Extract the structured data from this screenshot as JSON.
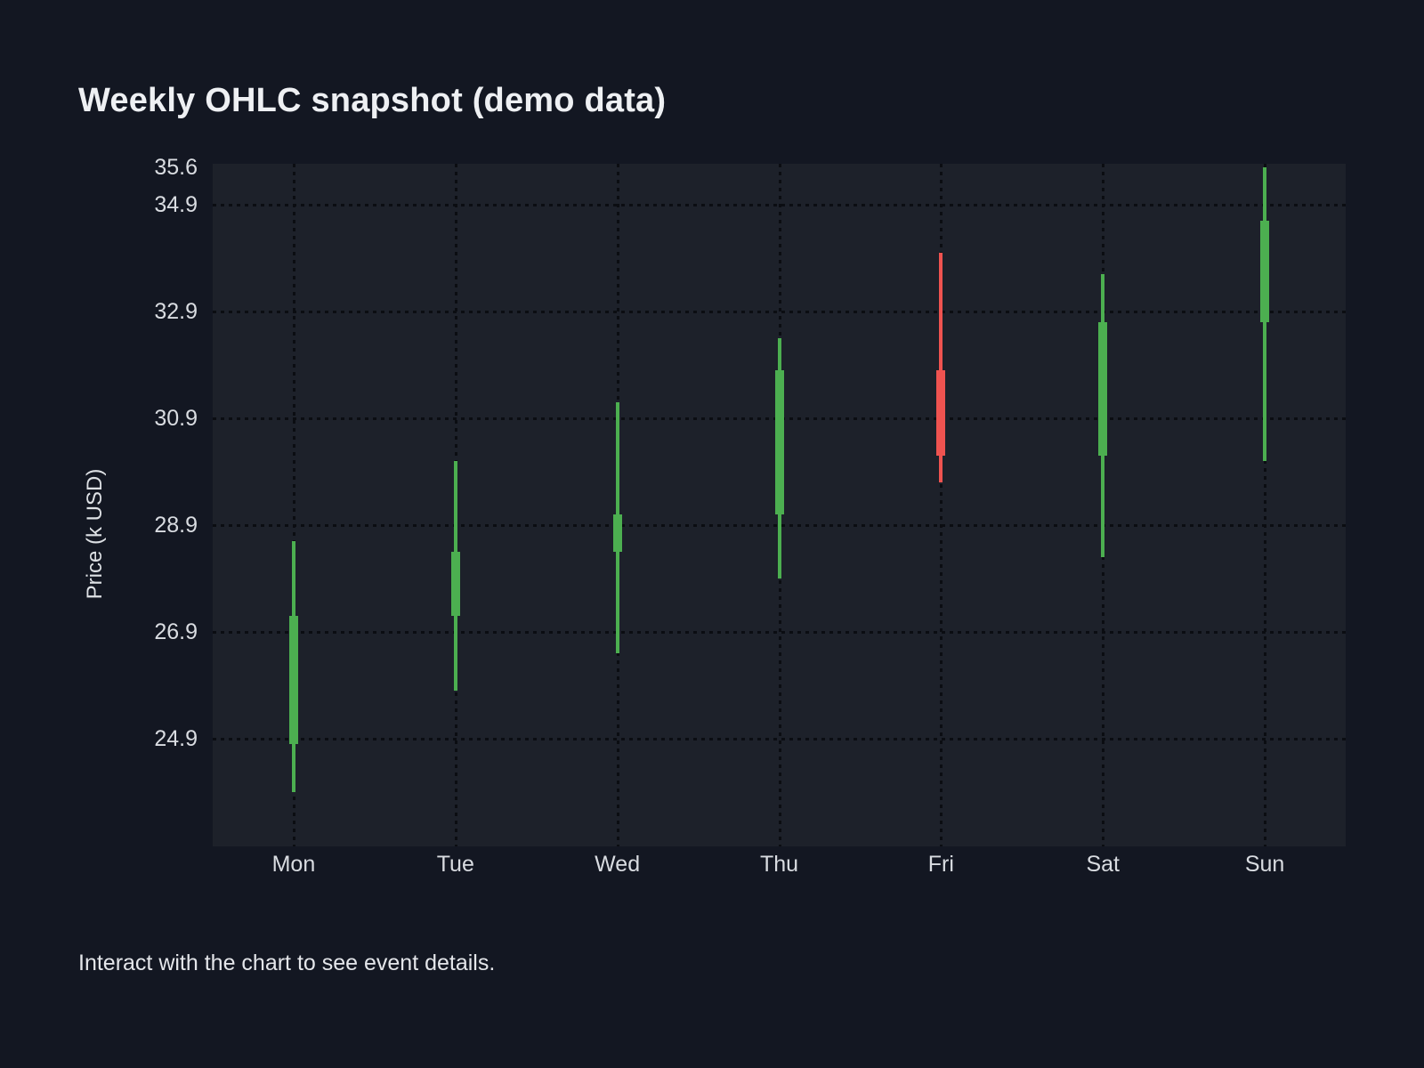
{
  "title": "Weekly OHLC snapshot (demo data)",
  "y_axis_label": "Price (k USD)",
  "footer": "Interact with the chart to see event details.",
  "colors": {
    "background": "#131722",
    "panel": "#1d212a",
    "grid_dots": "#0b0d12",
    "up": "#4caf50",
    "down": "#ef5350",
    "text": "#d9dce1",
    "title_text": "#eef0f3"
  },
  "chart_data": {
    "type": "candlestick",
    "title": "Weekly OHLC snapshot (demo data)",
    "xlabel": "",
    "ylabel": "Price (k USD)",
    "categories": [
      "Mon",
      "Tue",
      "Wed",
      "Thu",
      "Fri",
      "Sat",
      "Sun"
    ],
    "series": [
      {
        "day": "Mon",
        "open": 24.8,
        "high": 28.6,
        "low": 23.9,
        "close": 27.2,
        "direction": "up"
      },
      {
        "day": "Tue",
        "open": 27.2,
        "high": 30.1,
        "low": 25.8,
        "close": 28.4,
        "direction": "up"
      },
      {
        "day": "Wed",
        "open": 28.4,
        "high": 31.2,
        "low": 26.5,
        "close": 29.1,
        "direction": "up"
      },
      {
        "day": "Thu",
        "open": 29.1,
        "high": 32.4,
        "low": 27.9,
        "close": 31.8,
        "direction": "up"
      },
      {
        "day": "Fri",
        "open": 31.8,
        "high": 34.0,
        "low": 29.7,
        "close": 30.2,
        "direction": "down"
      },
      {
        "day": "Sat",
        "open": 30.2,
        "high": 33.6,
        "low": 28.3,
        "close": 32.7,
        "direction": "up"
      },
      {
        "day": "Sun",
        "open": 32.7,
        "high": 35.6,
        "low": 30.1,
        "close": 34.6,
        "direction": "up"
      }
    ],
    "y_ticks": [
      35.6,
      34.9,
      32.9,
      30.9,
      28.9,
      26.9,
      24.9
    ],
    "y_gridlines": [
      34.9,
      32.9,
      30.9,
      28.9,
      26.9,
      24.9
    ],
    "ylim": [
      22.88,
      35.67
    ],
    "grid": "dotted",
    "legend": "none",
    "up_color": "#4caf50",
    "down_color": "#ef5350"
  }
}
